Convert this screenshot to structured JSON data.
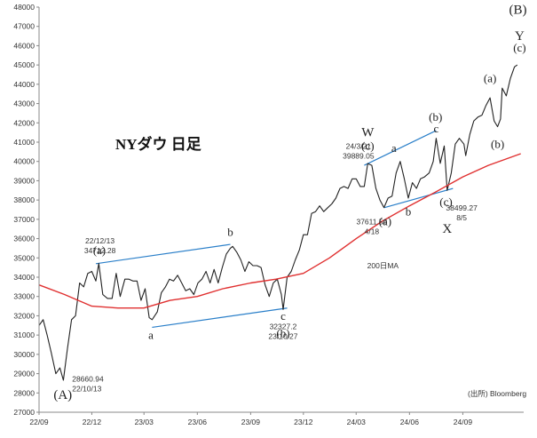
{
  "chart_data": {
    "type": "line",
    "title": "NYダウ 日足",
    "source": "(出所) Bloomberg",
    "ylim": [
      27000,
      48000
    ],
    "yticks": [
      27000,
      28000,
      29000,
      30000,
      31000,
      32000,
      33000,
      34000,
      35000,
      36000,
      37000,
      38000,
      39000,
      40000,
      41000,
      42000,
      43000,
      44000,
      45000,
      46000,
      47000,
      48000
    ],
    "xlim": [
      "2022-09-01",
      "2024-12-15"
    ],
    "xticks": [
      {
        "label": "22/09",
        "date": "2022-09-01"
      },
      {
        "label": "22/12",
        "date": "2022-12-01"
      },
      {
        "label": "23/03",
        "date": "2023-03-01"
      },
      {
        "label": "23/06",
        "date": "2023-06-01"
      },
      {
        "label": "23/09",
        "date": "2023-09-01"
      },
      {
        "label": "23/12",
        "date": "2023-12-01"
      },
      {
        "label": "24/03",
        "date": "2024-03-01"
      },
      {
        "label": "24/06",
        "date": "2024-06-01"
      },
      {
        "label": "24/09",
        "date": "2024-09-01"
      }
    ],
    "grid": false,
    "series": [
      {
        "name": "",
        "color": "#222222",
        "points": [
          [
            "2022-09-01",
            31500
          ],
          [
            "2022-09-08",
            31800
          ],
          [
            "2022-09-15",
            31000
          ],
          [
            "2022-09-22",
            30100
          ],
          [
            "2022-09-30",
            29000
          ],
          [
            "2022-10-07",
            29300
          ],
          [
            "2022-10-13",
            28660
          ],
          [
            "2022-10-20",
            30300
          ],
          [
            "2022-10-27",
            31800
          ],
          [
            "2022-11-03",
            32000
          ],
          [
            "2022-11-10",
            33700
          ],
          [
            "2022-11-17",
            33500
          ],
          [
            "2022-11-24",
            34200
          ],
          [
            "2022-12-01",
            34300
          ],
          [
            "2022-12-08",
            33800
          ],
          [
            "2022-12-13",
            34712
          ],
          [
            "2022-12-20",
            33100
          ],
          [
            "2022-12-28",
            32900
          ],
          [
            "2023-01-05",
            32900
          ],
          [
            "2023-01-12",
            34200
          ],
          [
            "2023-01-19",
            33000
          ],
          [
            "2023-01-27",
            33900
          ],
          [
            "2023-02-03",
            33900
          ],
          [
            "2023-02-10",
            33800
          ],
          [
            "2023-02-17",
            33800
          ],
          [
            "2023-02-24",
            32800
          ],
          [
            "2023-03-03",
            33400
          ],
          [
            "2023-03-10",
            31900
          ],
          [
            "2023-03-15",
            31800
          ],
          [
            "2023-03-24",
            32200
          ],
          [
            "2023-03-31",
            33200
          ],
          [
            "2023-04-07",
            33500
          ],
          [
            "2023-04-14",
            33900
          ],
          [
            "2023-04-21",
            33800
          ],
          [
            "2023-04-28",
            34100
          ],
          [
            "2023-05-05",
            33700
          ],
          [
            "2023-05-12",
            33300
          ],
          [
            "2023-05-19",
            33400
          ],
          [
            "2023-05-26",
            33100
          ],
          [
            "2023-06-02",
            33700
          ],
          [
            "2023-06-09",
            33900
          ],
          [
            "2023-06-16",
            34300
          ],
          [
            "2023-06-23",
            33700
          ],
          [
            "2023-06-30",
            34400
          ],
          [
            "2023-07-07",
            33700
          ],
          [
            "2023-07-14",
            34500
          ],
          [
            "2023-07-21",
            35200
          ],
          [
            "2023-07-28",
            35500
          ],
          [
            "2023-08-01",
            35600
          ],
          [
            "2023-08-08",
            35300
          ],
          [
            "2023-08-15",
            34900
          ],
          [
            "2023-08-22",
            34300
          ],
          [
            "2023-08-29",
            34800
          ],
          [
            "2023-09-05",
            34600
          ],
          [
            "2023-09-12",
            34600
          ],
          [
            "2023-09-19",
            34500
          ],
          [
            "2023-09-26",
            33600
          ],
          [
            "2023-10-03",
            33000
          ],
          [
            "2023-10-10",
            33700
          ],
          [
            "2023-10-17",
            33900
          ],
          [
            "2023-10-24",
            33100
          ],
          [
            "2023-10-27",
            32327
          ],
          [
            "2023-11-03",
            34000
          ],
          [
            "2023-11-10",
            34300
          ],
          [
            "2023-11-17",
            34900
          ],
          [
            "2023-11-24",
            35400
          ],
          [
            "2023-12-01",
            36200
          ],
          [
            "2023-12-08",
            36200
          ],
          [
            "2023-12-15",
            37300
          ],
          [
            "2023-12-22",
            37400
          ],
          [
            "2023-12-29",
            37700
          ],
          [
            "2024-01-05",
            37400
          ],
          [
            "2024-01-12",
            37600
          ],
          [
            "2024-01-19",
            37800
          ],
          [
            "2024-01-26",
            38100
          ],
          [
            "2024-02-02",
            38600
          ],
          [
            "2024-02-09",
            38700
          ],
          [
            "2024-02-16",
            38600
          ],
          [
            "2024-02-23",
            39100
          ],
          [
            "2024-03-01",
            39100
          ],
          [
            "2024-03-08",
            38700
          ],
          [
            "2024-03-15",
            38700
          ],
          [
            "2024-03-21",
            39889
          ],
          [
            "2024-03-28",
            39800
          ],
          [
            "2024-04-04",
            38600
          ],
          [
            "2024-04-11",
            38000
          ],
          [
            "2024-04-18",
            37611
          ],
          [
            "2024-04-25",
            38100
          ],
          [
            "2024-05-02",
            38200
          ],
          [
            "2024-05-09",
            39400
          ],
          [
            "2024-05-16",
            40000
          ],
          [
            "2024-05-23",
            39100
          ],
          [
            "2024-05-30",
            38100
          ],
          [
            "2024-06-06",
            38900
          ],
          [
            "2024-06-13",
            38600
          ],
          [
            "2024-06-20",
            39100
          ],
          [
            "2024-06-27",
            39200
          ],
          [
            "2024-07-05",
            39400
          ],
          [
            "2024-07-12",
            40000
          ],
          [
            "2024-07-17",
            41200
          ],
          [
            "2024-07-24",
            39900
          ],
          [
            "2024-07-31",
            40800
          ],
          [
            "2024-08-05",
            38499
          ],
          [
            "2024-08-12",
            39400
          ],
          [
            "2024-08-19",
            40900
          ],
          [
            "2024-08-26",
            41200
          ],
          [
            "2024-09-03",
            40900
          ],
          [
            "2024-09-06",
            40300
          ],
          [
            "2024-09-13",
            41400
          ],
          [
            "2024-09-20",
            42100
          ],
          [
            "2024-09-27",
            42300
          ],
          [
            "2024-10-04",
            42400
          ],
          [
            "2024-10-11",
            42900
          ],
          [
            "2024-10-18",
            43300
          ],
          [
            "2024-10-25",
            42100
          ],
          [
            "2024-10-31",
            41800
          ],
          [
            "2024-11-05",
            42200
          ],
          [
            "2024-11-08",
            43800
          ],
          [
            "2024-11-15",
            43400
          ],
          [
            "2024-11-22",
            44300
          ],
          [
            "2024-11-29",
            44900
          ],
          [
            "2024-12-04",
            45000
          ]
        ]
      },
      {
        "name": "200日MA",
        "color": "#e03030",
        "points": [
          [
            "2022-09-01",
            33600
          ],
          [
            "2022-10-15",
            33100
          ],
          [
            "2022-12-01",
            32500
          ],
          [
            "2023-01-15",
            32400
          ],
          [
            "2023-03-01",
            32400
          ],
          [
            "2023-04-15",
            32800
          ],
          [
            "2023-06-01",
            33000
          ],
          [
            "2023-07-15",
            33400
          ],
          [
            "2023-09-01",
            33700
          ],
          [
            "2023-10-15",
            33900
          ],
          [
            "2023-12-01",
            34200
          ],
          [
            "2024-01-15",
            35000
          ],
          [
            "2024-03-01",
            36000
          ],
          [
            "2024-04-15",
            36900
          ],
          [
            "2024-06-01",
            37700
          ],
          [
            "2024-07-15",
            38400
          ],
          [
            "2024-09-01",
            39200
          ],
          [
            "2024-10-15",
            39800
          ],
          [
            "2024-12-10",
            40400
          ]
        ]
      }
    ],
    "channels": [
      {
        "start": [
          "2022-12-08",
          34700
        ],
        "end": [
          "2023-07-28",
          35700
        ]
      },
      {
        "start": [
          "2023-03-15",
          31400
        ],
        "end": [
          "2023-11-03",
          32400
        ]
      },
      {
        "start": [
          "2024-03-15",
          39800
        ],
        "end": [
          "2024-07-17",
          41600
        ]
      },
      {
        "start": [
          "2024-04-18",
          37600
        ],
        "end": [
          "2024-08-15",
          38600
        ]
      }
    ],
    "annotations": [
      {
        "id": "date-low-2022",
        "lines": [
          "28660.94",
          "22/10/13"
        ],
        "at": [
          "2022-10-28",
          28600
        ],
        "anchor": "start"
      },
      {
        "id": "date-high-2022",
        "lines": [
          "22/12/13",
          "34712.28"
        ],
        "at": [
          "2022-12-15",
          35750
        ],
        "anchor": "middle"
      },
      {
        "id": "date-low-2023",
        "lines": [
          "32327.2",
          "23/10/27"
        ],
        "at": [
          "2023-10-27",
          31300
        ],
        "anchor": "middle"
      },
      {
        "id": "date-high-2024",
        "lines": [
          "24/3/21",
          "39889.05"
        ],
        "at": [
          "2024-03-05",
          40650
        ],
        "anchor": "middle"
      },
      {
        "id": "date-low-2024-apr",
        "lines": [
          "37611.56",
          "4/18"
        ],
        "at": [
          "2024-03-28",
          36750
        ],
        "anchor": "middle"
      },
      {
        "id": "date-low-2024-aug",
        "lines": [
          "38499.27",
          "8/5"
        ],
        "at": [
          "2024-08-30",
          37450
        ],
        "anchor": "middle"
      }
    ],
    "wave_labels": [
      {
        "id": "wave-A",
        "text": "(A)",
        "at": [
          "2022-10-12",
          27700
        ],
        "size": "big"
      },
      {
        "id": "wave-a-2022",
        "text": "(a)",
        "at": [
          "2022-12-14",
          35200
        ],
        "size": "normal"
      },
      {
        "id": "wave-b-2023",
        "text": "b",
        "at": [
          "2023-07-28",
          36150
        ],
        "size": "normal"
      },
      {
        "id": "wave-a-2023",
        "text": "a",
        "at": [
          "2023-03-13",
          30800
        ],
        "size": "normal"
      },
      {
        "id": "wave-c-2023",
        "text": "c",
        "at": [
          "2023-10-27",
          31800
        ],
        "size": "normal"
      },
      {
        "id": "wave-b-paren",
        "text": "(b)",
        "at": [
          "2023-10-27",
          30900
        ],
        "size": "normal"
      },
      {
        "id": "wave-W",
        "text": "W",
        "at": [
          "2024-03-21",
          41300
        ],
        "size": "big"
      },
      {
        "id": "wave-c-paren-w",
        "text": "(c)",
        "at": [
          "2024-03-21",
          40600
        ],
        "size": "normal"
      },
      {
        "id": "wave-a-2024",
        "text": "a",
        "at": [
          "2024-05-05",
          40500
        ],
        "size": "normal"
      },
      {
        "id": "wave-b-paren-2024",
        "text": "(b)",
        "at": [
          "2024-07-16",
          42100
        ],
        "size": "normal"
      },
      {
        "id": "wave-c-2024",
        "text": "c",
        "at": [
          "2024-07-17",
          41500
        ],
        "size": "normal"
      },
      {
        "id": "wave-a-paren-2024",
        "text": "(a)",
        "at": [
          "2024-04-20",
          36700
        ],
        "size": "normal"
      },
      {
        "id": "wave-b-2024",
        "text": "b",
        "at": [
          "2024-05-30",
          37200
        ],
        "size": "normal"
      },
      {
        "id": "wave-c-paren-x",
        "text": "(c)",
        "at": [
          "2024-08-03",
          37700
        ],
        "size": "normal"
      },
      {
        "id": "wave-X",
        "text": "X",
        "at": [
          "2024-08-05",
          36300
        ],
        "size": "big"
      },
      {
        "id": "wave-a-paren-oct",
        "text": "(a)",
        "at": [
          "2024-10-18",
          44100
        ],
        "size": "normal"
      },
      {
        "id": "wave-b-paren-oct",
        "text": "(b)",
        "at": [
          "2024-10-31",
          40700
        ],
        "size": "normal"
      },
      {
        "id": "wave-B",
        "text": "(B)",
        "at": [
          "2024-12-05",
          47650
        ],
        "size": "big"
      },
      {
        "id": "wave-Y",
        "text": "Y",
        "at": [
          "2024-12-08",
          46300
        ],
        "size": "big"
      },
      {
        "id": "wave-c-paren-end",
        "text": "(c)",
        "at": [
          "2024-12-08",
          45700
        ],
        "size": "normal"
      }
    ],
    "ma_label": {
      "text": "200日MA",
      "at": [
        "2024-03-20",
        34450
      ],
      "color": "#e03030"
    },
    "channel_color": "#2a7fc9"
  }
}
